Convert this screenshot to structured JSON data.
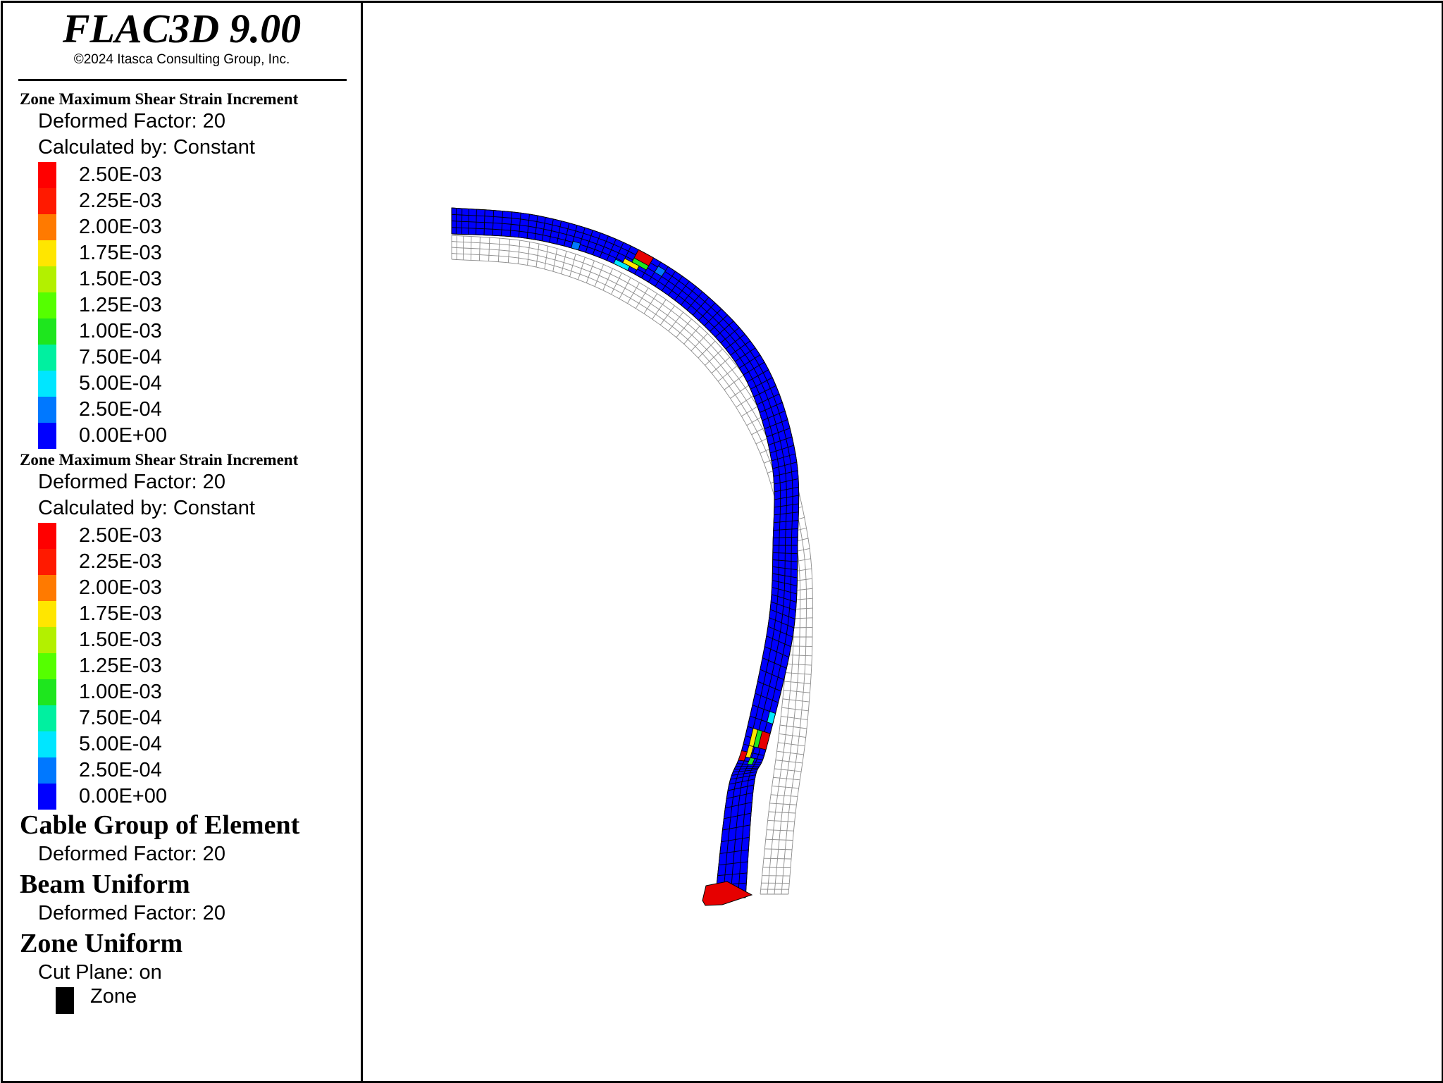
{
  "header": {
    "title": "FLAC3D 9.00",
    "copyright": "©2024 Itasca Consulting Group, Inc."
  },
  "legend": {
    "plots": [
      {
        "title": "Zone Maximum Shear Strain Increment",
        "deformed": "Deformed Factor: 20",
        "calculated": "Calculated by: Constant",
        "ticks": [
          "2.50E-03",
          "2.25E-03",
          "2.00E-03",
          "1.75E-03",
          "1.50E-03",
          "1.25E-03",
          "1.00E-03",
          "7.50E-04",
          "5.00E-04",
          "2.50E-04",
          "0.00E+00"
        ],
        "colors": [
          "#ff0000",
          "#ff1a00",
          "#ff7a00",
          "#ffe600",
          "#b3f000",
          "#55ff00",
          "#1ee61e",
          "#00f0a0",
          "#00e6ff",
          "#0078ff",
          "#0000ff"
        ]
      },
      {
        "title": "Zone Maximum Shear Strain Increment",
        "deformed": "Deformed Factor: 20",
        "calculated": "Calculated by: Constant",
        "ticks": [
          "2.50E-03",
          "2.25E-03",
          "2.00E-03",
          "1.75E-03",
          "1.50E-03",
          "1.25E-03",
          "1.00E-03",
          "7.50E-04",
          "5.00E-04",
          "2.50E-04",
          "0.00E+00"
        ],
        "colors": [
          "#ff0000",
          "#ff1a00",
          "#ff7a00",
          "#ffe600",
          "#b3f000",
          "#55ff00",
          "#1ee61e",
          "#00f0a0",
          "#00e6ff",
          "#0078ff",
          "#0000ff"
        ]
      }
    ],
    "cable": {
      "title": "Cable Group of Element",
      "deformed": "Deformed Factor: 20"
    },
    "beam": {
      "title": "Beam Uniform",
      "deformed": "Deformed Factor: 20"
    },
    "zone": {
      "title": "Zone Uniform",
      "cutplane": "Cut Plane: on",
      "item": "Zone",
      "item_color": "#000000"
    }
  },
  "model": {
    "fill_color": "#0000ff",
    "mesh_line_color": "#000000",
    "undeformed_line_color": "#8c8c8c",
    "highlight_colors": {
      "red": "#e60000",
      "green": "#1ee61e",
      "yellow": "#ffe600",
      "cyan": "#00e6ff",
      "mid": "#0078ff"
    }
  }
}
